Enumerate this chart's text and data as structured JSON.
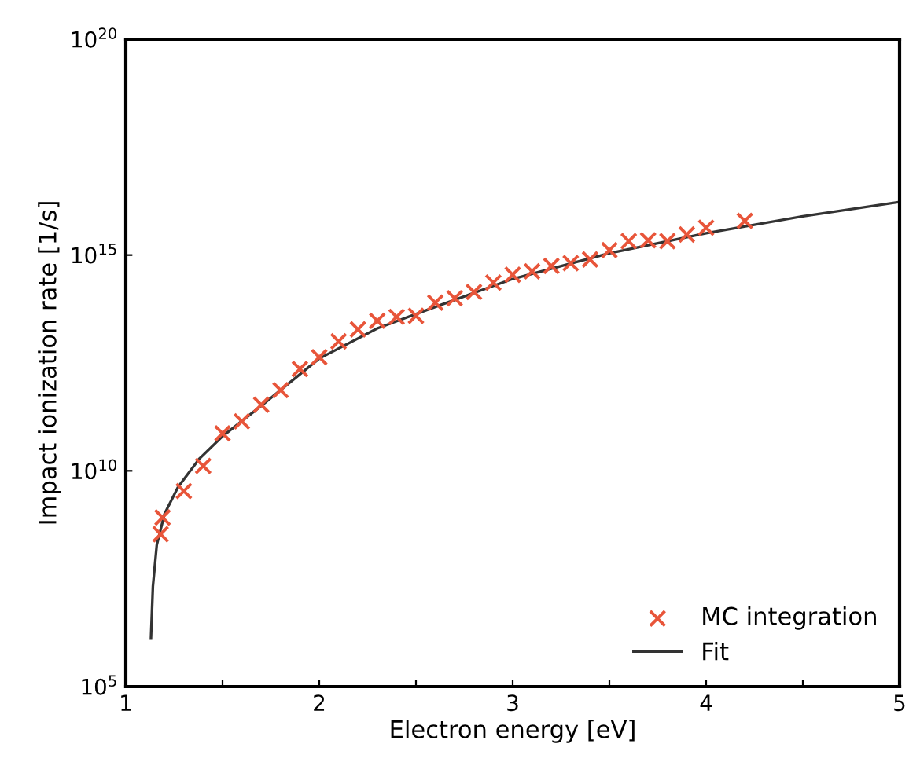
{
  "chart_data": {
    "type": "scatter",
    "xlabel": "Electron energy [eV]",
    "ylabel": "Impact ionization rate [1/s]",
    "log": "y",
    "xlim": [
      1,
      5
    ],
    "ylim": [
      100000.0,
      1e+20
    ],
    "xticks": [
      1,
      {
        "value": 1.5,
        "label": null
      },
      2,
      {
        "value": 2.5,
        "label": null
      },
      3,
      {
        "value": 3.5,
        "label": null
      },
      4,
      {
        "value": 4.5,
        "label": null
      },
      5
    ],
    "yticks": [
      {
        "value": 100000.0,
        "label": "10$^{5}$"
      },
      {
        "value": 10000000000.0,
        "label": "10$^{10}$"
      },
      {
        "value": 1000000000000000.0,
        "label": "10$^{15}$"
      },
      {
        "value": 1e+20,
        "label": "10$^{20}$"
      }
    ],
    "grid": false,
    "legend": "bottom right",
    "series": [
      {
        "name": "MC integration",
        "marker": "cross",
        "color": "#e8553a",
        "x": [
          1.18,
          1.19,
          1.3,
          1.4,
          1.5,
          1.6,
          1.7,
          1.8,
          1.9,
          2.0,
          2.1,
          2.2,
          2.3,
          2.4,
          2.5,
          2.6,
          2.7,
          2.8,
          2.9,
          3.0,
          3.1,
          3.2,
          3.3,
          3.4,
          3.5,
          3.6,
          3.7,
          3.8,
          3.9,
          4.0,
          4.2
        ],
        "values": [
          340000000.0,
          830000000.0,
          3400000000.0,
          13000000000.0,
          74000000000.0,
          140000000000.0,
          340000000000.0,
          740000000000.0,
          2300000000000.0,
          4300000000000.0,
          10000000000000.0,
          19000000000000.0,
          30000000000000.0,
          37000000000000.0,
          39000000000000.0,
          79000000000000.0,
          100000000000000.0,
          140000000000000.0,
          230000000000000.0,
          350000000000000.0,
          420000000000000.0,
          560000000000000.0,
          650000000000000.0,
          790000000000000.0,
          1300000000000000.0,
          2100000000000000.0,
          2200000000000000.0,
          2100000000000000.0,
          3000000000000000.0,
          4300000000000000.0,
          6200000000000000.0
        ]
      },
      {
        "name": "Fit",
        "type": "line",
        "line_style": "solid",
        "color": "#333333",
        "x": [
          1.13,
          1.14,
          1.16,
          1.2,
          1.27,
          1.38,
          1.5,
          1.7,
          2.0,
          2.3,
          2.6,
          3.0,
          3.5,
          4.0,
          4.5,
          5.0
        ],
        "values": [
          1300000.0,
          21000000.0,
          190000000.0,
          1000000000.0,
          4200000000.0,
          19000000000.0,
          63000000000.0,
          320000000000.0,
          4000000000000.0,
          20000000000000.0,
          63000000000000.0,
          280000000000000.0,
          1100000000000000.0,
          3200000000000000.0,
          7900000000000000.0,
          1.7e+16
        ]
      }
    ]
  }
}
